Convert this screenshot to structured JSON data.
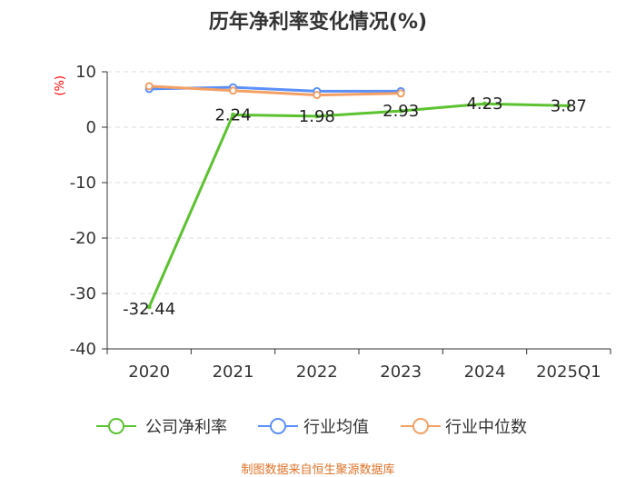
{
  "chart_data": {
    "type": "line",
    "title": "历年净利率变化情况(%)",
    "ylabel": "(%)",
    "xlabel": "",
    "categories": [
      "2020",
      "2021",
      "2022",
      "2023",
      "2024",
      "2025Q1"
    ],
    "ylim": [
      -40,
      10
    ],
    "yticks": [
      10,
      0,
      -10,
      -20,
      -30,
      -40
    ],
    "grid": true,
    "legend_position": "bottom",
    "series": [
      {
        "name": "公司净利率",
        "color": "#5cc230",
        "values": [
          -32.44,
          2.24,
          1.98,
          2.93,
          4.23,
          3.87
        ],
        "labels": [
          "-32.44",
          "2.24",
          "1.98",
          "2.93",
          "4.23",
          "3.87"
        ]
      },
      {
        "name": "行业均值",
        "color": "#5b8ff9",
        "values": [
          6.9,
          7.2,
          6.5,
          6.5,
          null,
          null
        ]
      },
      {
        "name": "行业中位数",
        "color": "#f4a064",
        "values": [
          7.4,
          6.6,
          5.8,
          6.1,
          null,
          null
        ]
      }
    ]
  },
  "source": "制图数据来自恒生聚源数据库"
}
